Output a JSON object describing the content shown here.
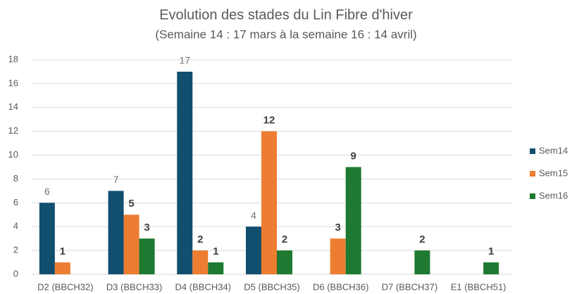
{
  "chart_data": {
    "type": "bar",
    "title": "Evolution des stades du Lin Fibre d'hiver",
    "subtitle": "(Semaine 14 : 17 mars à la semaine 16 : 14 avril)",
    "categories": [
      "D2 (BBCH32)",
      "D3 (BBCH33)",
      "D4 (BBCH34)",
      "D5 (BBCH35)",
      "D6 (BBCH36)",
      "D7 (BBCH37)",
      "E1 (BBCH51)"
    ],
    "series": [
      {
        "name": "Sem14",
        "color": "#124e6e",
        "values": [
          6,
          7,
          17,
          4,
          null,
          null,
          null
        ]
      },
      {
        "name": "Sem15",
        "color": "#ed7d31",
        "values": [
          1,
          5,
          2,
          12,
          3,
          null,
          null
        ]
      },
      {
        "name": "Sem16",
        "color": "#1d7a30",
        "values": [
          null,
          3,
          1,
          2,
          9,
          2,
          1
        ]
      }
    ],
    "ylim": [
      0,
      18
    ],
    "yticks": [
      0,
      2,
      4,
      6,
      8,
      10,
      12,
      14,
      16,
      18
    ],
    "grid": true,
    "legend": "right"
  }
}
